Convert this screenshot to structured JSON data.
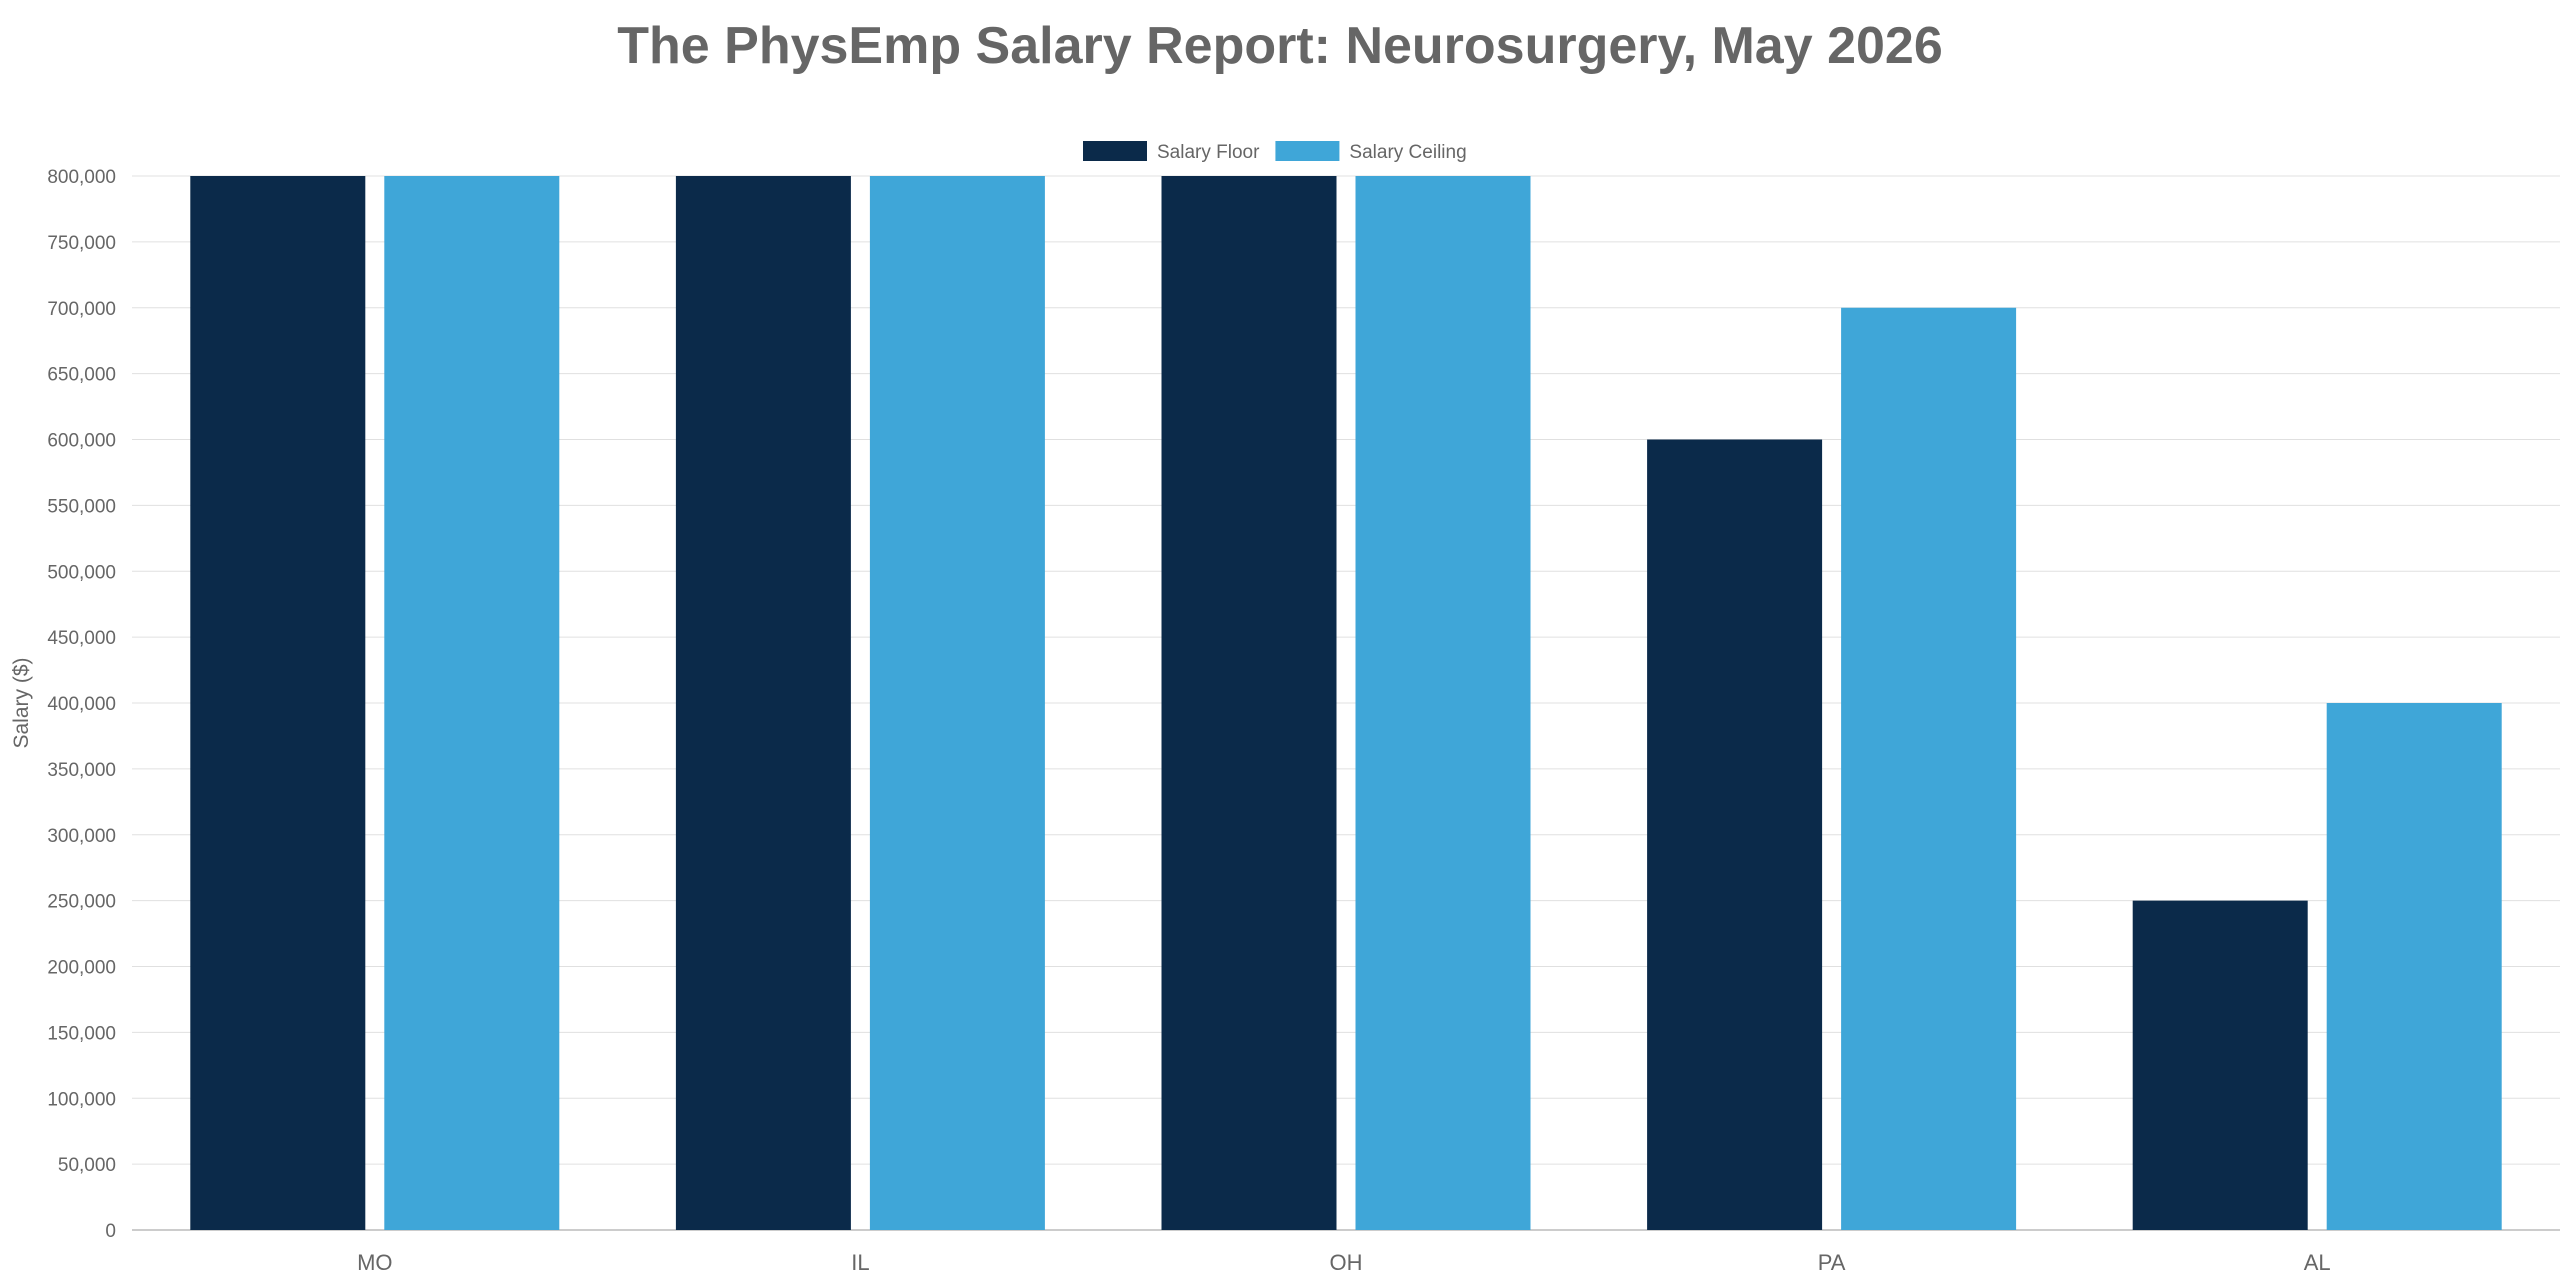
{
  "chart_data": {
    "type": "bar",
    "title": "The PhysEmp Salary Report: Neurosurgery, May 2026",
    "xlabel": "",
    "ylabel": "Salary ($)",
    "categories": [
      "MO",
      "IL",
      "OH",
      "PA",
      "AL"
    ],
    "series": [
      {
        "name": "Salary Floor",
        "values": [
          800000,
          800000,
          800000,
          600000,
          250000
        ],
        "color": "#0b2a4a"
      },
      {
        "name": "Salary Ceiling",
        "values": [
          800000,
          800000,
          800000,
          700000,
          400000
        ],
        "color": "#3fa6d8"
      }
    ],
    "ylim": [
      0,
      800000
    ],
    "yticks": [
      0,
      50000,
      100000,
      150000,
      200000,
      250000,
      300000,
      350000,
      400000,
      450000,
      500000,
      550000,
      600000,
      650000,
      700000,
      750000,
      800000
    ],
    "ytick_labels": [
      "0",
      "50,000",
      "100,000",
      "150,000",
      "200,000",
      "250,000",
      "300,000",
      "350,000",
      "400,000",
      "450,000",
      "500,000",
      "550,000",
      "600,000",
      "650,000",
      "700,000",
      "750,000",
      "800,000"
    ],
    "grid": true,
    "legend_position": "top-center"
  }
}
